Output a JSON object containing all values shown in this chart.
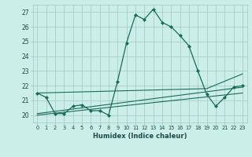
{
  "xlabel": "Humidex (Indice chaleur)",
  "bg_color": "#cceee8",
  "grid_color": "#aacccc",
  "line_color": "#1a6b5a",
  "xlim": [
    -0.5,
    23.5
  ],
  "ylim": [
    19.5,
    27.5
  ],
  "yticks": [
    20,
    21,
    22,
    23,
    24,
    25,
    26,
    27
  ],
  "xticks": [
    0,
    1,
    2,
    3,
    4,
    5,
    6,
    7,
    8,
    9,
    10,
    11,
    12,
    13,
    14,
    15,
    16,
    17,
    18,
    19,
    20,
    21,
    22,
    23
  ],
  "series1_x": [
    0,
    1,
    2,
    3,
    4,
    5,
    6,
    7,
    8,
    9,
    10,
    11,
    12,
    13,
    14,
    15,
    16,
    17,
    18,
    19,
    20,
    21,
    22,
    23
  ],
  "series1_y": [
    21.5,
    21.2,
    20.1,
    20.1,
    20.6,
    20.7,
    20.3,
    20.3,
    20.0,
    22.3,
    24.9,
    26.8,
    26.5,
    27.2,
    26.3,
    26.0,
    25.4,
    24.7,
    23.0,
    21.4,
    20.6,
    21.2,
    21.9,
    22.0
  ],
  "series2_x": [
    0,
    19,
    23
  ],
  "series2_y": [
    21.5,
    21.8,
    22.8
  ],
  "series3_x": [
    0,
    23
  ],
  "series3_y": [
    20.1,
    21.9
  ],
  "series4_x": [
    0,
    23
  ],
  "series4_y": [
    20.0,
    21.5
  ]
}
